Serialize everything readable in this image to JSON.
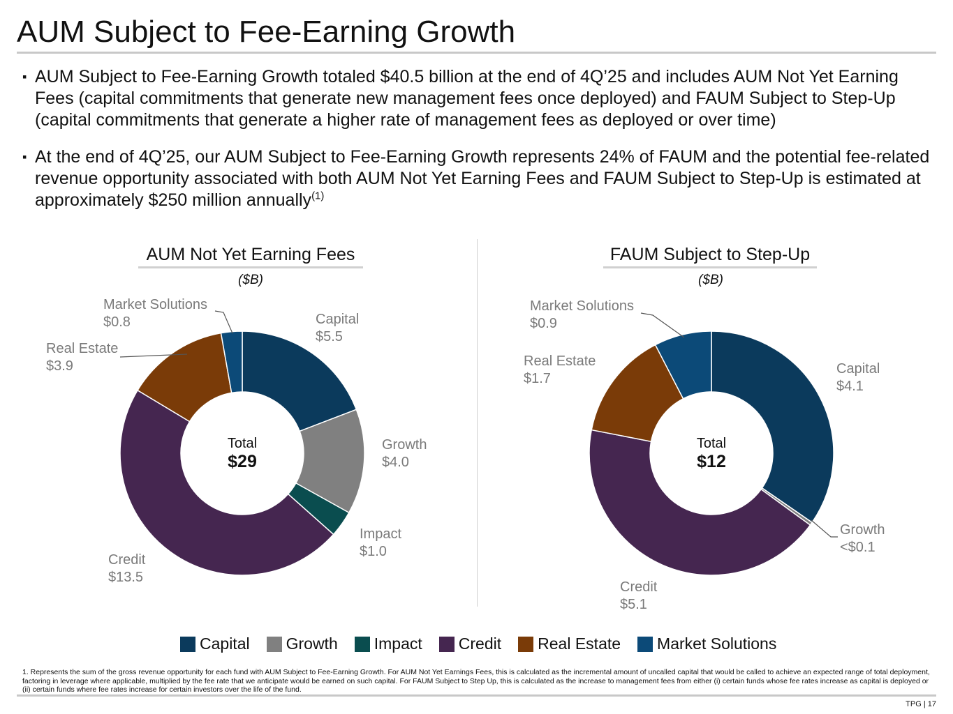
{
  "page": {
    "title": "AUM Subject to Fee-Earning Growth",
    "bullet_mark": "▪",
    "bullet1": "AUM Subject to Fee-Earning Growth totaled $40.5 billion at the end of 4Q’25 and includes AUM Not Yet Earning Fees (capital commitments that generate new management fees once deployed) and FAUM Subject to Step-Up (capital commitments that generate a higher rate of management fees as deployed or over time)",
    "bullet2": "At the end of 4Q’25, our AUM Subject to Fee-Earning Growth represents 24% of FAUM and the potential fee-related revenue opportunity associated with both AUM Not Yet Earning Fees and FAUM Subject to Step-Up is estimated at approximately $250 million annually",
    "bullet2_sup": "(1)",
    "footnote": "1. Represents the sum of the gross revenue opportunity for each fund with AUM Subject to Fee-Earning Growth. For AUM Not Yet Earnings Fees, this is calculated as the incremental amount of uncalled capital that would be called to achieve an expected range of total deployment, factoring in leverage where applicable, multiplied by the fee rate that we anticipate would be earned on such capital. For FAUM Subject to Step Up, this is calculated as the increase to management fees from either (i) certain funds whose fee rates increase as capital is deployed or (ii) certain funds where fee rates increase for certain investors over the life of the fund.",
    "page_number": "TPG | 17"
  },
  "colors": {
    "Capital": "#0b3a5c",
    "Growth": "#808080",
    "Impact": "#0a4d4f",
    "Credit": "#452650",
    "Real Estate": "#7a3b08",
    "Market Solutions": "#0c4a78"
  },
  "legend": [
    "Capital",
    "Growth",
    "Impact",
    "Credit",
    "Real Estate",
    "Market Solutions"
  ],
  "chart_data": [
    {
      "type": "pie",
      "title": "AUM Not Yet Earning Fees",
      "unit": "($B)",
      "center_label": "Total",
      "center_value": "$29",
      "categories": [
        "Capital",
        "Growth",
        "Impact",
        "Credit",
        "Real Estate",
        "Market Solutions"
      ],
      "values": [
        5.5,
        4.0,
        1.0,
        13.5,
        3.9,
        0.8
      ],
      "labels": [
        "$5.5",
        "$4.0",
        "$1.0",
        "$13.5",
        "$3.9",
        "$0.8"
      ]
    },
    {
      "type": "pie",
      "title": "FAUM Subject to Step-Up",
      "unit": "($B)",
      "center_label": "Total",
      "center_value": "$12",
      "categories": [
        "Capital",
        "Growth",
        "Credit",
        "Real Estate",
        "Market Solutions"
      ],
      "values": [
        4.1,
        0.05,
        5.1,
        1.7,
        0.9
      ],
      "labels": [
        "$4.1",
        "<$0.1",
        "$5.1",
        "$1.7",
        "$0.9"
      ]
    }
  ]
}
